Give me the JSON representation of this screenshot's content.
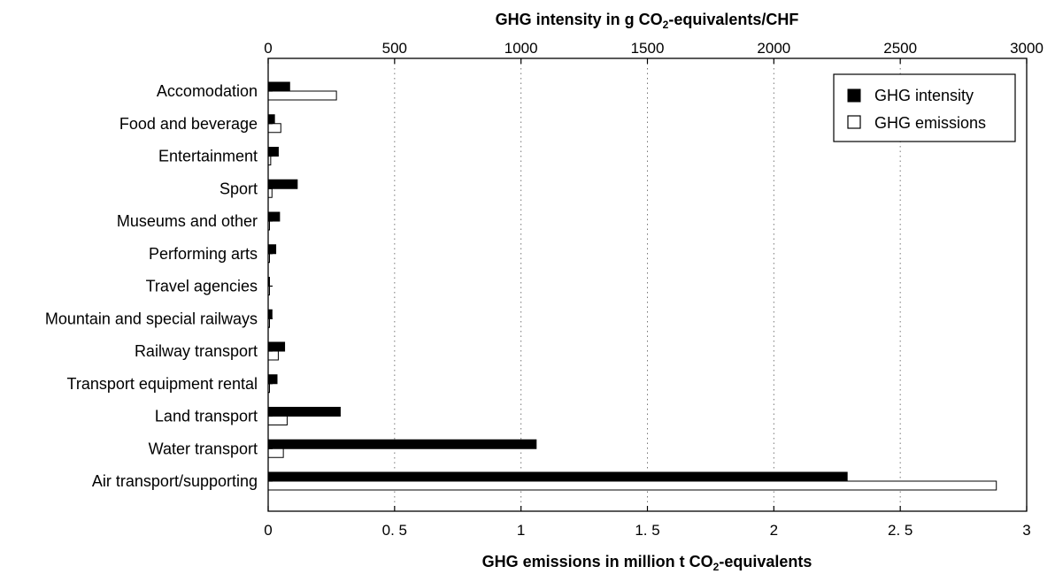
{
  "chart_data": {
    "type": "bar",
    "orientation": "horizontal",
    "categories": [
      "Accomodation",
      "Food and beverage",
      "Entertainment",
      "Sport",
      "Museums and other",
      "Performing arts",
      "Travel agencies",
      "Mountain and special railways",
      "Railway transport",
      "Transport equipment rental",
      "Land transport",
      "Water transport",
      "Air transport/supporting"
    ],
    "series": [
      {
        "name": "GHG intensity",
        "axis": "top",
        "fill": "#000000",
        "values": [
          85,
          25,
          40,
          115,
          45,
          30,
          5,
          15,
          65,
          35,
          285,
          1060,
          2290
        ]
      },
      {
        "name": "GHG emissions",
        "axis": "bottom",
        "fill": "#ffffff",
        "values": [
          0.27,
          0.05,
          0.01,
          0.015,
          0.005,
          0.005,
          0.005,
          0.005,
          0.04,
          0.005,
          0.075,
          0.06,
          2.88
        ]
      }
    ],
    "top_axis": {
      "title_main": "GHG intensity in g CO",
      "title_sub": "2",
      "title_tail": "-equivalents/CHF",
      "range": [
        0,
        3000
      ],
      "ticks": [
        "0",
        "500",
        "1000",
        "1500",
        "2000",
        "2500",
        "3000"
      ]
    },
    "bottom_axis": {
      "title_main": "GHG emissions in million t CO",
      "title_sub": "2",
      "title_tail": "-equivalents",
      "range": [
        0,
        3
      ],
      "ticks": [
        "0",
        "0. 5",
        "1",
        "1. 5",
        "2",
        "2. 5",
        "3"
      ]
    },
    "grid": "vertical-dotted",
    "legend_placement": "top-right"
  }
}
